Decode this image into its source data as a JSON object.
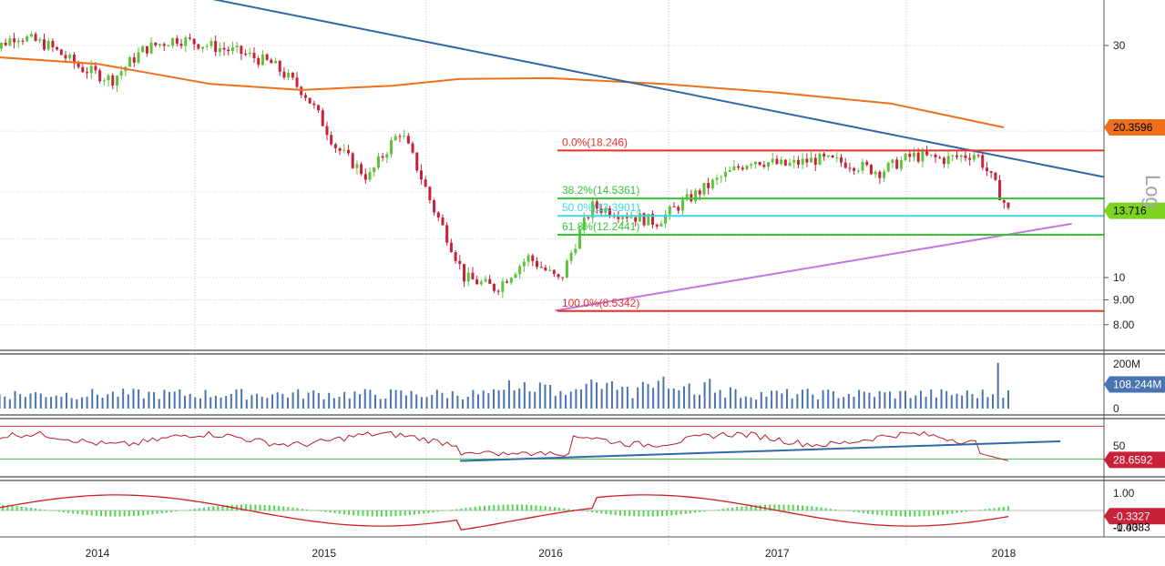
{
  "chart_data": {
    "type": "candlestick",
    "scale": "log",
    "scale_label": "Log",
    "x_axis": {
      "tick_labels": [
        "2014",
        "2015",
        "2016",
        "2017",
        "2018"
      ]
    },
    "price_panel": {
      "y_ticks": [
        8,
        9,
        10,
        30
      ],
      "y_tick_labels": [
        "8.00",
        "9.00",
        "10",
        "30"
      ],
      "last_price": 13.716,
      "last_price_label": "13.716",
      "moving_average_label": "20.3596",
      "moving_average_value": 20.3596,
      "fibonacci_levels": [
        {
          "label": "0.0%(18.246)",
          "price": 18.246,
          "color": "#e8312a"
        },
        {
          "label": "38.2%(14.5361)",
          "price": 14.5361,
          "color": "#35c435"
        },
        {
          "label": "50.0%(13.3901)",
          "price": 13.3901,
          "color": "#3ad6ec"
        },
        {
          "label": "61.8%(12.2441)",
          "price": 12.2441,
          "color": "#35c435"
        },
        {
          "label": "100.0%(8.5342)",
          "price": 8.5342,
          "color": "#e8312a"
        }
      ],
      "weekly_closes_approx": [
        28.5,
        31.5,
        30.0,
        27.0,
        25.5,
        29.5,
        31.0,
        30.0,
        29.0,
        27.5,
        24.0,
        18.5,
        16.0,
        20.0,
        14.0,
        10.0,
        9.5,
        11.0,
        9.8,
        14.0,
        13.5,
        13.0,
        14.5,
        16.0,
        17.5,
        17.0,
        17.5,
        17.2,
        16.5,
        17.8,
        17.5,
        18.0,
        13.7
      ]
    },
    "volume_panel": {
      "y_tick_labels": [
        "200M",
        "0"
      ],
      "last_label": "108.244M",
      "last_value_millions": 108.244
    },
    "rsi_panel": {
      "y_tick_labels": [
        "50"
      ],
      "last_label": "28.6592",
      "last_value": 28.6592
    },
    "macd_panel": {
      "y_tick_labels": [
        "1.00",
        "-1.00"
      ],
      "last_label": "-0.4383",
      "last_value": -0.4383,
      "signal_label": "-0.3327"
    },
    "colors": {
      "up_candle": "#5cc33b",
      "down_candle": "#c8213a",
      "moving_average": "#ee6f1c",
      "trendline": "#2f6aa6",
      "support_trendline": "#c477e3",
      "volume_bar": "#4a74b0",
      "rsi_line": "#b51c2a",
      "macd_hist": "#4fd94f",
      "macd_fill": "#f3a3a3",
      "macd_line": "#d11f1f"
    }
  }
}
